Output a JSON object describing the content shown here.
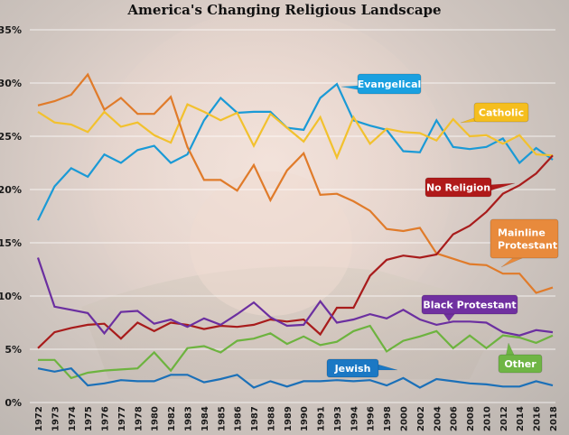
{
  "chart_data": {
    "type": "line",
    "title": "America's Changing Religious Landscape",
    "xlabel": "",
    "ylabel": "",
    "ylim": [
      0,
      35
    ],
    "yticks": [
      0,
      5,
      10,
      15,
      20,
      25,
      30,
      35
    ],
    "ytick_labels": [
      "0%",
      "5%",
      "10%",
      "15%",
      "20%",
      "25%",
      "30%",
      "35%"
    ],
    "grid": true,
    "legend": "inline callout labels",
    "categories": [
      "1972",
      "1973",
      "1974",
      "1975",
      "1976",
      "1977",
      "1978",
      "1980",
      "1982",
      "1983",
      "1984",
      "1985",
      "1986",
      "1987",
      "1988",
      "1989",
      "1990",
      "1991",
      "1993",
      "1994",
      "1996",
      "1998",
      "2000",
      "2002",
      "2004",
      "2006",
      "2008",
      "2010",
      "2012",
      "2014",
      "2016",
      "2018"
    ],
    "series": [
      {
        "name": "Evangelical",
        "color": "#1a9ad6",
        "values": [
          17.1,
          20.3,
          22.0,
          21.2,
          23.3,
          22.5,
          23.7,
          24.1,
          22.5,
          23.3,
          26.5,
          28.6,
          27.2,
          27.3,
          27.3,
          25.8,
          25.6,
          28.6,
          29.9,
          26.5,
          26.0,
          25.6,
          23.6,
          23.5,
          26.5,
          24.0,
          23.8,
          24.0,
          24.8,
          22.5,
          23.9,
          22.8
        ]
      },
      {
        "name": "Catholic",
        "color": "#f2c12e",
        "values": [
          27.3,
          26.3,
          26.1,
          25.4,
          27.3,
          25.9,
          26.3,
          25.1,
          24.4,
          28.0,
          27.3,
          26.5,
          27.2,
          24.1,
          27.1,
          25.8,
          24.5,
          26.8,
          23.0,
          26.8,
          24.3,
          25.7,
          25.4,
          25.3,
          24.6,
          26.6,
          25.0,
          25.1,
          24.3,
          25.1,
          23.3,
          23.2
        ]
      },
      {
        "name": "Mainline Protestant",
        "color": "#e07b2a",
        "values": [
          27.9,
          28.3,
          28.9,
          30.8,
          27.5,
          28.6,
          27.1,
          27.1,
          28.7,
          24.0,
          20.9,
          20.9,
          19.9,
          22.3,
          19.0,
          21.8,
          23.4,
          19.5,
          19.6,
          18.9,
          18.0,
          16.3,
          16.1,
          16.4,
          14.0,
          13.5,
          13.0,
          12.9,
          12.1,
          12.1,
          10.3,
          10.8
        ]
      },
      {
        "name": "No Religion",
        "color": "#a81c1c",
        "values": [
          5.1,
          6.6,
          7.0,
          7.3,
          7.4,
          6.0,
          7.5,
          6.7,
          7.5,
          7.3,
          6.9,
          7.2,
          7.1,
          7.3,
          7.8,
          7.6,
          7.8,
          6.4,
          8.9,
          8.9,
          11.9,
          13.4,
          13.8,
          13.6,
          13.9,
          15.8,
          16.6,
          17.9,
          19.6,
          20.4,
          21.5,
          23.2
        ]
      },
      {
        "name": "Black Protestant",
        "color": "#6b2fa0",
        "values": [
          13.6,
          9.0,
          8.7,
          8.4,
          6.5,
          8.5,
          8.6,
          7.4,
          7.8,
          7.1,
          7.9,
          7.3,
          8.3,
          9.4,
          8.0,
          7.2,
          7.3,
          9.5,
          7.5,
          7.8,
          8.3,
          7.9,
          8.7,
          7.8,
          7.3,
          7.6,
          7.6,
          7.5,
          6.6,
          6.3,
          6.8,
          6.6
        ]
      },
      {
        "name": "Other",
        "color": "#6db33f",
        "values": [
          4.0,
          4.0,
          2.3,
          2.8,
          3.0,
          3.1,
          3.2,
          4.7,
          3.0,
          5.1,
          5.3,
          4.7,
          5.8,
          6.0,
          6.5,
          5.5,
          6.2,
          5.4,
          5.7,
          6.7,
          7.2,
          4.8,
          5.8,
          6.2,
          6.7,
          5.1,
          6.3,
          5.1,
          6.3,
          6.1,
          5.6,
          6.3
        ]
      },
      {
        "name": "Jewish",
        "color": "#1b70b8",
        "values": [
          3.2,
          2.9,
          3.2,
          1.6,
          1.8,
          2.1,
          2.0,
          2.0,
          2.6,
          2.6,
          1.9,
          2.2,
          2.6,
          1.4,
          2.0,
          1.5,
          2.0,
          2.0,
          2.1,
          2.0,
          2.1,
          1.6,
          2.3,
          1.4,
          2.2,
          2.0,
          1.8,
          1.7,
          1.5,
          1.5,
          2.0,
          1.6
        ]
      }
    ],
    "annotations": [
      {
        "series": "Evangelical",
        "text": [
          "Evangelical"
        ],
        "color": "#1aa0e0",
        "text_color": "#ffffff"
      },
      {
        "series": "Catholic",
        "text": [
          "Catholic"
        ],
        "color": "#f5be1e",
        "text_color": "#ffffff"
      },
      {
        "series": "No Religion",
        "text": [
          "No Religion"
        ],
        "color": "#b01a1a",
        "text_color": "#ffffff"
      },
      {
        "series": "Mainline Protestant",
        "text": [
          "Mainline",
          "Protestant"
        ],
        "color": "#e88a3c",
        "text_color": "#ffffff"
      },
      {
        "series": "Black Protestant",
        "text": [
          "Black Protestant"
        ],
        "color": "#7030a0",
        "text_color": "#ffffff"
      },
      {
        "series": "Other",
        "text": [
          "Other"
        ],
        "color": "#6fb545",
        "text_color": "#ffffff"
      },
      {
        "series": "Jewish",
        "text": [
          "Jewish"
        ],
        "color": "#1b78c4",
        "text_color": "#ffffff"
      }
    ]
  }
}
